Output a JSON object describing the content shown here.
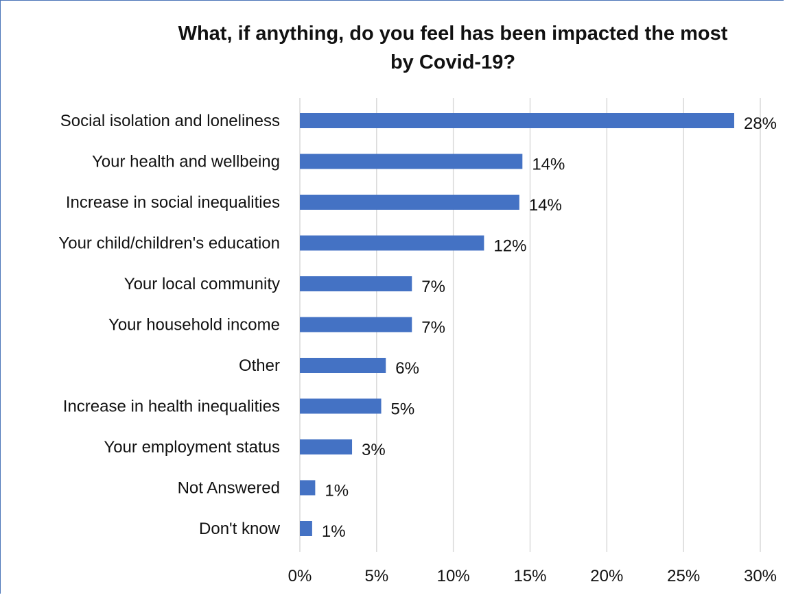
{
  "chart_data": {
    "type": "bar",
    "orientation": "horizontal",
    "title_line1": "What, if anything, do you feel has been impacted the most",
    "title_line2": "by Covid-19?",
    "categories": [
      "Social isolation and loneliness",
      "Your health and wellbeing",
      "Increase in social inequalities",
      "Your child/children's education",
      "Your local community",
      "Your household income",
      "Other",
      "Increase in health inequalities",
      "Your employment status",
      "Not Answered",
      "Don't know"
    ],
    "values": [
      28.3,
      14.5,
      14.3,
      12.0,
      7.3,
      7.3,
      5.6,
      5.3,
      3.4,
      1.0,
      0.8
    ],
    "data_labels": [
      "28%",
      "14%",
      "14%",
      "12%",
      "7%",
      "7%",
      "6%",
      "5%",
      "3%",
      "1%",
      "1%"
    ],
    "xlim": [
      0,
      30
    ],
    "xticks": [
      0,
      5,
      10,
      15,
      20,
      25,
      30
    ],
    "xtick_labels": [
      "0%",
      "5%",
      "10%",
      "15%",
      "20%",
      "25%",
      "30%"
    ],
    "grid": true,
    "bar_color": "#4472c4",
    "grid_color": "#d9d9d9"
  }
}
